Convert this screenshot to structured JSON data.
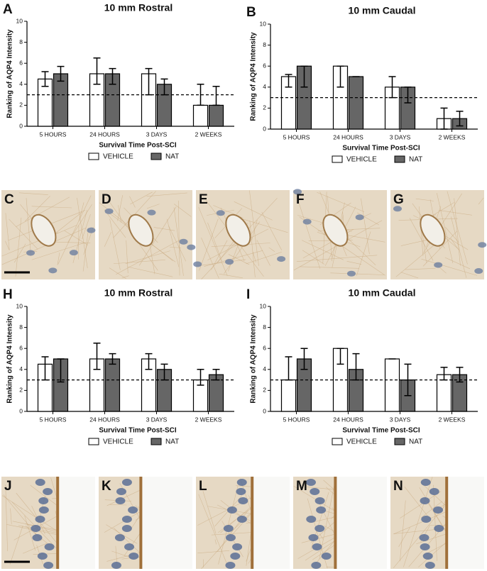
{
  "chart_data": [
    {
      "type": "bar",
      "panel_label": "A",
      "title": "10 mm Rostral",
      "x_label": "Survival Time Post-SCI",
      "y_label": "Ranking of AQP4 Intensity",
      "categories": [
        "5 HOURS",
        "24 HOURS",
        "3 DAYS",
        "2 WEEKS"
      ],
      "series": [
        {
          "name": "VEHICLE",
          "color": "#ffffff",
          "values": [
            4.5,
            5,
            5,
            2
          ],
          "lower": [
            3.8,
            4,
            3,
            2
          ],
          "upper": [
            5.2,
            6.5,
            5.5,
            4
          ]
        },
        {
          "name": "NAT",
          "color": "#666666",
          "values": [
            5,
            5,
            4,
            2
          ],
          "lower": [
            4.3,
            4,
            3,
            2
          ],
          "upper": [
            5.7,
            5.5,
            4.5,
            3.8
          ]
        }
      ],
      "ylim": [
        0,
        10
      ],
      "yticks": [
        0,
        2,
        4,
        6,
        8,
        10
      ],
      "reference_line": 3
    },
    {
      "type": "bar",
      "panel_label": "B",
      "title": "10 mm Caudal",
      "x_label": "Survival Time Post-SCI",
      "y_label": "Ranking of AQP4 Intensity",
      "categories": [
        "5 HOURS",
        "24 HOURS",
        "3 DAYS",
        "2 WEEKS"
      ],
      "series": [
        {
          "name": "VEHICLE",
          "color": "#ffffff",
          "values": [
            5,
            6,
            4,
            1
          ],
          "lower": [
            4,
            4,
            3,
            0
          ],
          "upper": [
            5.2,
            6,
            5,
            2
          ]
        },
        {
          "name": "NAT",
          "color": "#666666",
          "values": [
            6,
            5,
            4,
            1
          ],
          "lower": [
            4,
            5,
            2.5,
            0.3
          ],
          "upper": [
            6,
            5,
            4,
            1.7
          ]
        }
      ],
      "ylim": [
        0,
        10
      ],
      "yticks": [
        0,
        2,
        4,
        6,
        8,
        10
      ],
      "reference_line": 3
    },
    {
      "type": "bar",
      "panel_label": "H",
      "title": "10 mm Rostral",
      "x_label": "Survival Time Post-SCI",
      "y_label": "Ranking of AQP4 Intensity",
      "categories": [
        "5 HOURS",
        "24 HOURS",
        "3 DAYS",
        "2 WEEKS"
      ],
      "series": [
        {
          "name": "VEHICLE",
          "color": "#ffffff",
          "values": [
            4.5,
            5,
            5,
            3
          ],
          "lower": [
            3,
            4,
            4,
            2.5
          ],
          "upper": [
            5.2,
            6.5,
            5.5,
            4
          ]
        },
        {
          "name": "NAT",
          "color": "#666666",
          "values": [
            5,
            5,
            4,
            3.5
          ],
          "lower": [
            2.8,
            4.5,
            3,
            3
          ],
          "upper": [
            5,
            5.5,
            4.5,
            4
          ]
        }
      ],
      "ylim": [
        0,
        10
      ],
      "yticks": [
        0,
        2,
        4,
        6,
        8,
        10
      ],
      "reference_line": 3
    },
    {
      "type": "bar",
      "panel_label": "I",
      "title": "10 mm Caudal",
      "x_label": "Survival Time Post-SCI",
      "y_label": "Ranking of AQP4 Intensity",
      "categories": [
        "5 HOURS",
        "24 HOURS",
        "3 DAYS",
        "2 WEEKS"
      ],
      "series": [
        {
          "name": "VEHICLE",
          "color": "#ffffff",
          "values": [
            3,
            6,
            5,
            3.5
          ],
          "lower": [
            3,
            4.5,
            5,
            3
          ],
          "upper": [
            5.2,
            6,
            5,
            4.2
          ]
        },
        {
          "name": "NAT",
          "color": "#666666",
          "values": [
            5,
            4,
            3,
            3.5
          ],
          "lower": [
            4,
            3,
            1.5,
            2.8
          ],
          "upper": [
            6,
            5.5,
            4.5,
            4.2
          ]
        }
      ],
      "ylim": [
        0,
        10
      ],
      "yticks": [
        0,
        2,
        4,
        6,
        8,
        10
      ],
      "reference_line": 3
    }
  ],
  "image_panels": {
    "top": [
      "C",
      "D",
      "E",
      "F",
      "G"
    ],
    "bottom": [
      "J",
      "K",
      "L",
      "M",
      "N"
    ]
  }
}
